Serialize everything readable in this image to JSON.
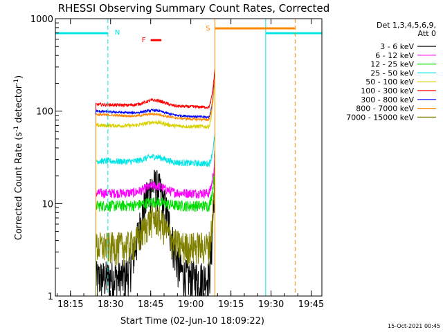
{
  "chart_data": {
    "type": "line",
    "title": "RHESSI Observing Summary Count Rates, Corrected",
    "xlabel": "Start Time (02-Jun-10 18:09:22)",
    "ylabel_main": "Corrected Count Rate (s",
    "ylabel_sup1": "-1",
    "ylabel_mid": " detector",
    "ylabel_sup2": "-1",
    "ylabel_end": ")",
    "yscale": "log",
    "ylim": [
      1,
      1000
    ],
    "xlim": [
      "18:09:22",
      "19:49:00"
    ],
    "x_ticks": [
      "18:15",
      "18:30",
      "18:45",
      "19:00",
      "19:15",
      "19:30",
      "19:45"
    ],
    "y_ticks": [
      "1",
      "10",
      "100",
      "1000"
    ],
    "detector_label": "Det 1,3,4,5,6,9,",
    "attenuator_label": "Att 0",
    "legend_placement": "right",
    "annotations": {
      "night_label": "N",
      "saa_label": "S",
      "flare_label": "F"
    },
    "series": [
      {
        "name": "3 - 6 keV",
        "color": "#000000",
        "level_start": 1.6,
        "level_end": 1.6,
        "noise": 0.5,
        "bump": 10,
        "spike": 30
      },
      {
        "name": "6 - 12 keV",
        "color": "#ff00ff",
        "level_start": 13,
        "level_end": 13,
        "noise": 0.12,
        "bump": 1.2,
        "spike": 30
      },
      {
        "name": "12 - 25 keV",
        "color": "#00dd00",
        "level_start": 9.5,
        "level_end": 9.5,
        "noise": 0.14,
        "bump": 1.1,
        "spike": 25
      },
      {
        "name": "25 - 50 keV",
        "color": "#00e5e5",
        "level_start": 29,
        "level_end": 27,
        "noise": 0.08,
        "bump": 1.15,
        "spike": 55
      },
      {
        "name": "50 - 100 keV",
        "color": "#d8d000",
        "level_start": 70,
        "level_end": 68,
        "noise": 0.05,
        "bump": 1.1,
        "spike": 230
      },
      {
        "name": "100 - 300 keV",
        "color": "#ff0000",
        "level_start": 118,
        "level_end": 110,
        "noise": 0.04,
        "bump": 1.15,
        "spike": 290
      },
      {
        "name": "300 - 800 keV",
        "color": "#0000ff",
        "level_start": 100,
        "level_end": 85,
        "noise": 0.03,
        "bump": 1.1,
        "spike": 250
      },
      {
        "name": "800 - 7000 keV",
        "color": "#ff8800",
        "level_start": 92,
        "level_end": 80,
        "noise": 0.03,
        "bump": 1.08,
        "spike": 240
      },
      {
        "name": "7000 - 15000 keV",
        "color": "#808000",
        "level_start": 3.5,
        "level_end": 3.5,
        "noise": 0.4,
        "bump": 2,
        "spike": 20
      }
    ],
    "night_intervals": [
      {
        "start": "18:09:22",
        "end": "18:29:00"
      },
      {
        "start": "19:28:00",
        "end": "19:49:00"
      }
    ],
    "saa_interval": {
      "start": "19:09:00",
      "end": "19:39:00"
    },
    "flare_interval": {
      "start": "18:45:00",
      "end": "18:49:00"
    },
    "data_start": "18:24:30",
    "data_end": "19:09:00"
  },
  "footer": {
    "timestamp": "15-Oct-2021 00:45"
  }
}
